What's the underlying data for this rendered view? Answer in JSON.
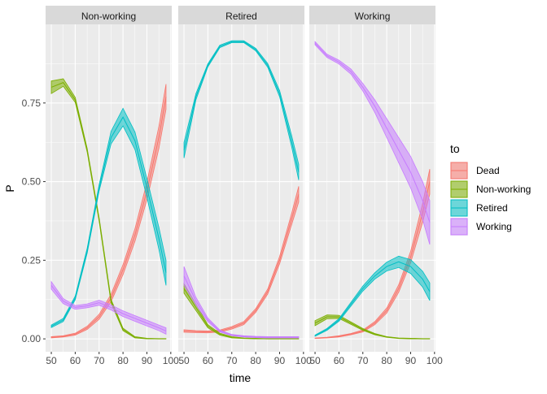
{
  "chart_data": {
    "type": "line",
    "xlabel": "time",
    "ylabel": "P",
    "xlim": [
      47.6,
      100.4
    ],
    "ylim": [
      -0.041,
      1.0
    ],
    "x_ticks": [
      "50",
      "60",
      "70",
      "80",
      "90",
      "100"
    ],
    "y_ticks": [
      "0.00",
      "0.25",
      "0.50",
      "0.75"
    ],
    "grid": true,
    "legend": {
      "title": "to",
      "placement": "right",
      "entries": [
        {
          "name": "Dead",
          "color": "#F8766D"
        },
        {
          "name": "Non-working",
          "color": "#7CAE00"
        },
        {
          "name": "Retired",
          "color": "#00BFC4"
        },
        {
          "name": "Working",
          "color": "#C77CFF"
        }
      ]
    },
    "x": [
      50,
      55,
      60,
      65,
      70,
      75,
      80,
      85,
      90,
      95,
      98
    ],
    "facets": [
      {
        "title": "Non-working",
        "series": [
          {
            "name": "Dead",
            "values": [
              0.005,
              0.008,
              0.015,
              0.035,
              0.07,
              0.13,
              0.22,
              0.33,
              0.47,
              0.64,
              0.77
            ],
            "ci": [
              0.002,
              0.002,
              0.003,
              0.005,
              0.008,
              0.012,
              0.016,
              0.02,
              0.028,
              0.035,
              0.04
            ]
          },
          {
            "name": "Non-working",
            "values": [
              0.8,
              0.815,
              0.76,
              0.6,
              0.38,
              0.12,
              0.03,
              0.005,
              0.001,
              0.0,
              0.0
            ],
            "ci": [
              0.02,
              0.012,
              0.008,
              0.006,
              0.006,
              0.006,
              0.004,
              0.002,
              0.001,
              0.001,
              0.001
            ]
          },
          {
            "name": "Retired",
            "values": [
              0.04,
              0.06,
              0.13,
              0.28,
              0.48,
              0.64,
              0.705,
              0.63,
              0.48,
              0.32,
              0.21
            ],
            "ci": [
              0.004,
              0.005,
              0.006,
              0.008,
              0.01,
              0.02,
              0.028,
              0.028,
              0.03,
              0.035,
              0.04
            ]
          },
          {
            "name": "Working",
            "values": [
              0.17,
              0.12,
              0.1,
              0.105,
              0.115,
              0.1,
              0.08,
              0.065,
              0.05,
              0.035,
              0.025
            ],
            "ci": [
              0.012,
              0.008,
              0.006,
              0.006,
              0.008,
              0.008,
              0.009,
              0.009,
              0.009,
              0.009,
              0.01
            ]
          }
        ]
      },
      {
        "title": "Retired",
        "series": [
          {
            "name": "Dead",
            "values": [
              0.025,
              0.023,
              0.022,
              0.025,
              0.035,
              0.05,
              0.09,
              0.15,
              0.25,
              0.38,
              0.46
            ],
            "ci": [
              0.004,
              0.003,
              0.003,
              0.003,
              0.004,
              0.005,
              0.006,
              0.008,
              0.012,
              0.018,
              0.025
            ]
          },
          {
            "name": "Non-working",
            "values": [
              0.16,
              0.1,
              0.04,
              0.015,
              0.005,
              0.002,
              0.001,
              0.0,
              0.0,
              0.0,
              0.0
            ],
            "ci": [
              0.015,
              0.01,
              0.005,
              0.003,
              0.002,
              0.001,
              0.001,
              0.001,
              0.001,
              0.001,
              0.001
            ]
          },
          {
            "name": "Retired",
            "values": [
              0.6,
              0.77,
              0.87,
              0.93,
              0.945,
              0.945,
              0.92,
              0.87,
              0.78,
              0.63,
              0.53
            ],
            "ci": [
              0.025,
              0.01,
              0.005,
              0.004,
              0.003,
              0.003,
              0.004,
              0.006,
              0.01,
              0.018,
              0.025
            ]
          },
          {
            "name": "Working",
            "values": [
              0.2,
              0.12,
              0.06,
              0.025,
              0.012,
              0.008,
              0.006,
              0.005,
              0.005,
              0.005,
              0.005
            ],
            "ci": [
              0.03,
              0.012,
              0.006,
              0.003,
              0.002,
              0.002,
              0.002,
              0.002,
              0.002,
              0.002,
              0.002
            ]
          }
        ]
      },
      {
        "title": "Working",
        "series": [
          {
            "name": "Dead",
            "values": [
              0.002,
              0.004,
              0.008,
              0.015,
              0.025,
              0.05,
              0.09,
              0.16,
              0.26,
              0.4,
              0.5
            ],
            "ci": [
              0.001,
              0.001,
              0.002,
              0.002,
              0.003,
              0.005,
              0.008,
              0.012,
              0.018,
              0.03,
              0.04
            ]
          },
          {
            "name": "Non-working",
            "values": [
              0.05,
              0.07,
              0.07,
              0.05,
              0.03,
              0.015,
              0.006,
              0.002,
              0.001,
              0.0,
              0.0
            ],
            "ci": [
              0.008,
              0.006,
              0.005,
              0.004,
              0.003,
              0.002,
              0.001,
              0.001,
              0.001,
              0.001,
              0.001
            ]
          },
          {
            "name": "Retired",
            "values": [
              0.01,
              0.03,
              0.06,
              0.11,
              0.16,
              0.2,
              0.23,
              0.245,
              0.23,
              0.19,
              0.15
            ],
            "ci": [
              0.002,
              0.003,
              0.004,
              0.006,
              0.008,
              0.01,
              0.014,
              0.018,
              0.022,
              0.025,
              0.028
            ]
          },
          {
            "name": "Working",
            "values": [
              0.94,
              0.9,
              0.88,
              0.85,
              0.8,
              0.74,
              0.67,
              0.6,
              0.53,
              0.44,
              0.37
            ],
            "ci": [
              0.005,
              0.005,
              0.006,
              0.008,
              0.012,
              0.02,
              0.03,
              0.04,
              0.05,
              0.06,
              0.07
            ]
          }
        ]
      }
    ]
  }
}
